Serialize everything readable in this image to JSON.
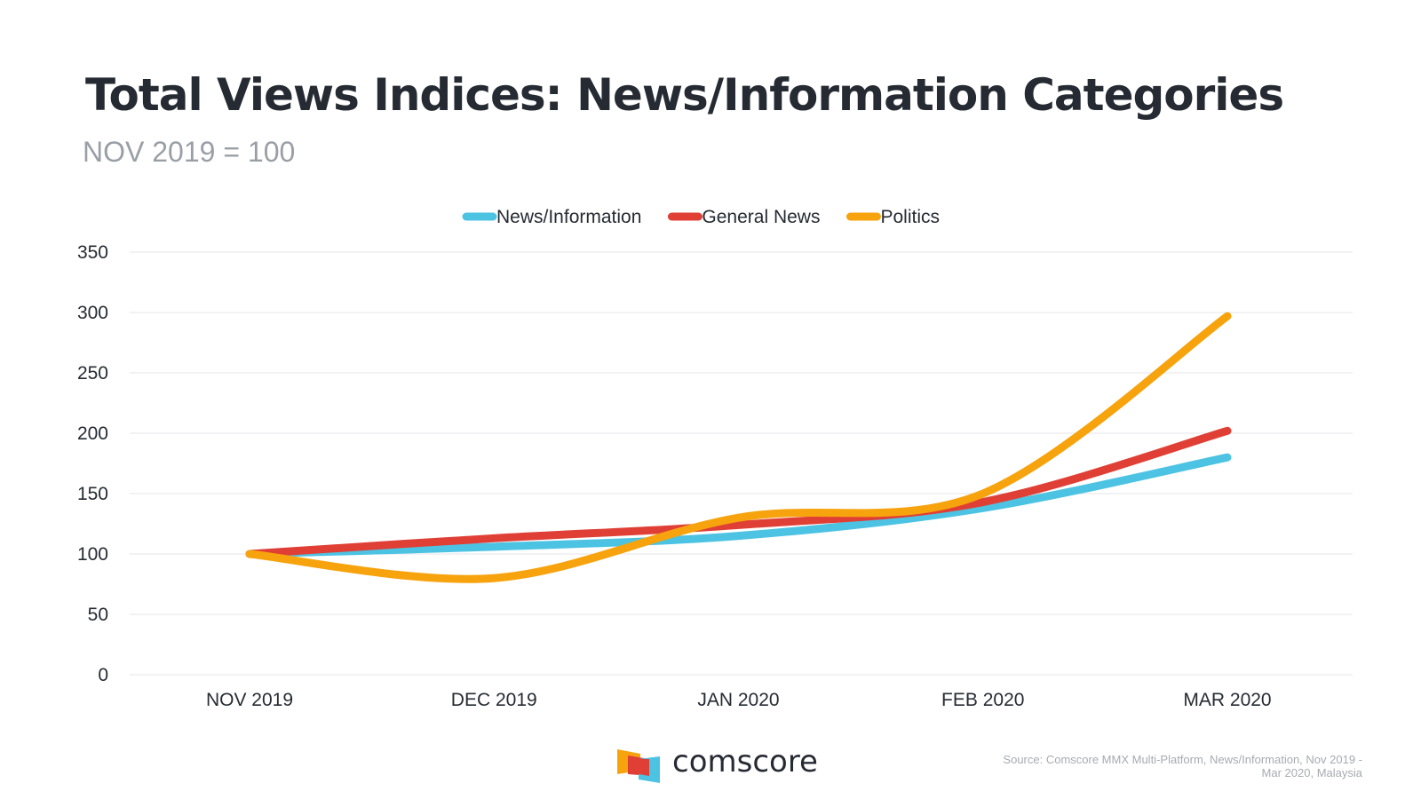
{
  "chart_data": {
    "type": "line",
    "title": "Total Views Indices: News/Information Categories",
    "subtitle": "NOV 2019 = 100",
    "categories": [
      "NOV 2019",
      "DEC 2019",
      "JAN 2020",
      "FEB 2020",
      "MAR 2020"
    ],
    "series": [
      {
        "name": "News/Information",
        "color": "#4cc3e3",
        "values": [
          100,
          106,
          115,
          138,
          180
        ]
      },
      {
        "name": "General News",
        "color": "#e03f35",
        "values": [
          100,
          113,
          124,
          143,
          202
        ]
      },
      {
        "name": "Politics",
        "color": "#f7a30d",
        "values": [
          100,
          80,
          130,
          150,
          297
        ]
      }
    ],
    "yticks": [
      0,
      50,
      100,
      150,
      200,
      250,
      300,
      350
    ],
    "ylim": [
      0,
      350
    ],
    "xlabel": "",
    "ylabel": "",
    "grid": true,
    "legend": "top-center"
  },
  "footer": {
    "brand": "comscore",
    "source_line1": "Source: Comscore MMX Multi-Platform, News/Information, Nov 2019 -",
    "source_line2": "Mar 2020, Malaysia"
  },
  "colors": {
    "title": "#262b33",
    "subtitle": "#9a9fa6",
    "grid": "#e4e6e9",
    "logo_orange": "#f7a30d",
    "logo_red": "#e03f35",
    "logo_blue": "#4cc3e3"
  }
}
